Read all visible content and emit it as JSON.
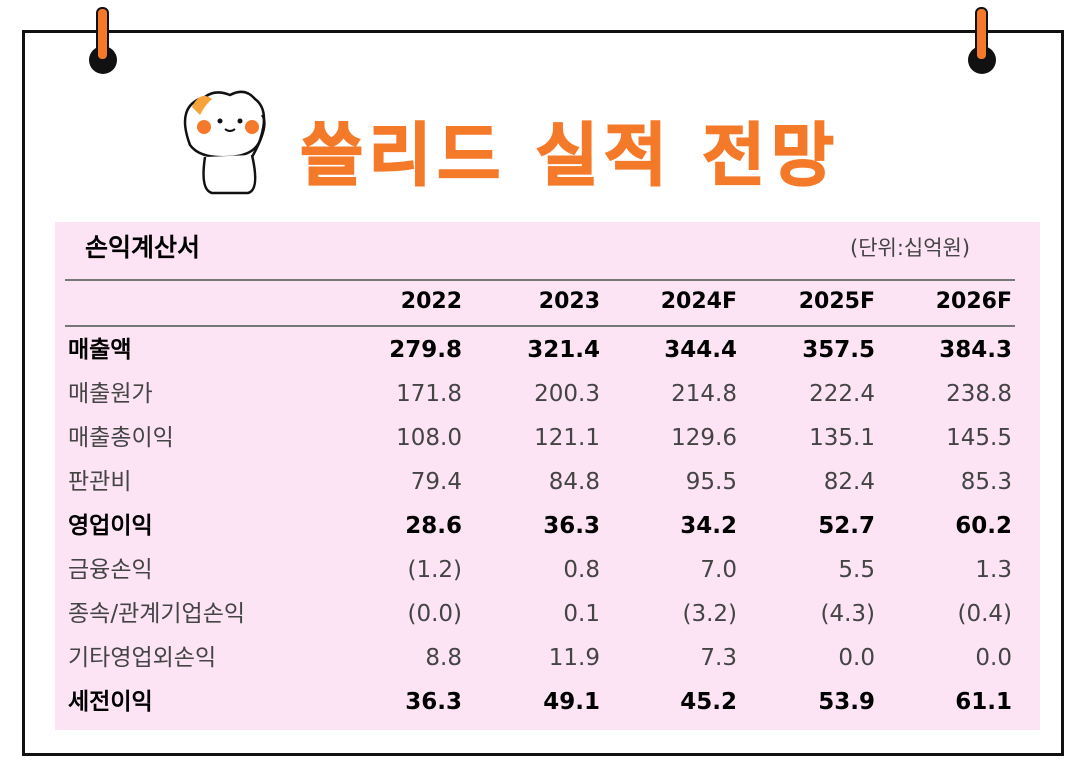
{
  "header": {
    "title": "쓸리드 실적 전망"
  },
  "table": {
    "title": "손익계산서",
    "unit": "(단위:십억원)",
    "columns": [
      "2022",
      "2023",
      "2024F",
      "2025F",
      "2026F"
    ],
    "rows": [
      {
        "label": "매출액",
        "bold": true,
        "cells": [
          "279.8",
          "321.4",
          "344.4",
          "357.5",
          "384.3"
        ]
      },
      {
        "label": "매출원가",
        "bold": false,
        "cells": [
          "171.8",
          "200.3",
          "214.8",
          "222.4",
          "238.8"
        ]
      },
      {
        "label": "매출총이익",
        "bold": false,
        "cells": [
          "108.0",
          "121.1",
          "129.6",
          "135.1",
          "145.5"
        ]
      },
      {
        "label": "판관비",
        "bold": false,
        "cells": [
          "79.4",
          "84.8",
          "95.5",
          "82.4",
          "85.3"
        ]
      },
      {
        "label": "영업이익",
        "bold": true,
        "cells": [
          "28.6",
          "36.3",
          "34.2",
          "52.7",
          "60.2"
        ]
      },
      {
        "label": "금융손익",
        "bold": false,
        "cells": [
          "(1.2)",
          "0.8",
          "7.0",
          "5.5",
          "1.3"
        ]
      },
      {
        "label": "종속/관계기업손익",
        "bold": false,
        "cells": [
          "(0.0)",
          "0.1",
          "(3.2)",
          "(4.3)",
          "(0.4)"
        ]
      },
      {
        "label": "기타영업외손익",
        "bold": false,
        "cells": [
          "8.8",
          "11.9",
          "7.3",
          "0.0",
          "0.0"
        ]
      },
      {
        "label": "세전이익",
        "bold": true,
        "cells": [
          "36.3",
          "49.1",
          "45.2",
          "53.9",
          "61.1"
        ]
      }
    ]
  }
}
